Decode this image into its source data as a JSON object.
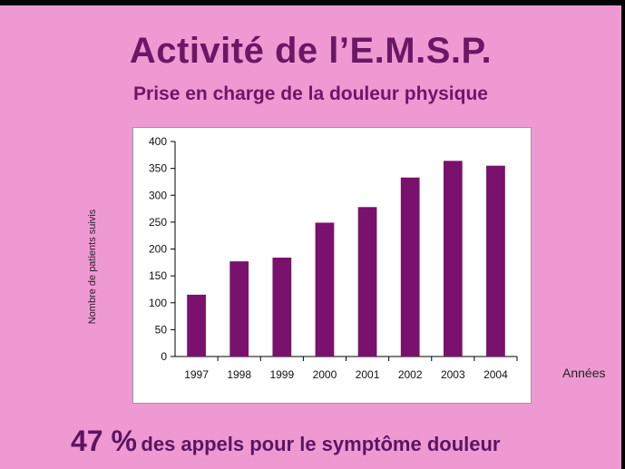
{
  "slide": {
    "title": "Activité de l’E.M.S.P.",
    "subtitle": "Prise en charge de la douleur physique",
    "note_pct": "47 %",
    "note_text": "des appels pour le symptôme douleur",
    "colors": {
      "background": "#ef99d3",
      "text": "#6b1766",
      "bar": "#7a116c"
    }
  },
  "chart_data": {
    "type": "bar",
    "title": "",
    "xlabel": "Années",
    "ylabel": "Nombre de patients suivis",
    "categories": [
      "1997",
      "1998",
      "1999",
      "2000",
      "2001",
      "2002",
      "2003",
      "2004"
    ],
    "values": [
      115,
      177,
      184,
      249,
      278,
      333,
      364,
      355
    ],
    "ylim": [
      0,
      400
    ],
    "yticks": [
      0,
      50,
      100,
      150,
      200,
      250,
      300,
      350,
      400
    ],
    "grid": false,
    "legend": "none"
  }
}
